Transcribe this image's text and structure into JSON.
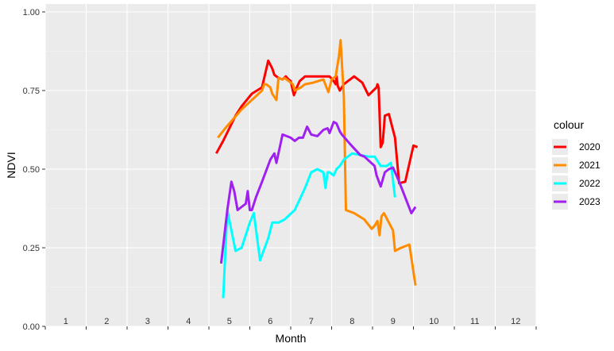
{
  "chart_data": {
    "type": "line",
    "title": "",
    "xlabel": "Month",
    "ylabel": "NDVI",
    "ylim": [
      0,
      1
    ],
    "y_ticks": [
      "0.00",
      "0.25",
      "0.50",
      "0.75",
      "1.00"
    ],
    "y_tick_values": [
      0,
      0.25,
      0.5,
      0.75,
      1.0
    ],
    "month_labels": [
      "1",
      "2",
      "3",
      "4",
      "5",
      "6",
      "7",
      "8",
      "9",
      "10",
      "11",
      "12"
    ],
    "grid": true,
    "legend_title": "colour",
    "legend_position": "right",
    "series": [
      {
        "name": "2020",
        "color": "#ff0000",
        "x": [
          4.68,
          4.85,
          5.0,
          5.15,
          5.3,
          5.55,
          5.8,
          5.95,
          6.05,
          6.1,
          6.2,
          6.3,
          6.38,
          6.45,
          6.5,
          6.55,
          6.58,
          6.65,
          6.72,
          6.85,
          7.05,
          7.25,
          7.45,
          7.55,
          7.6,
          7.62,
          7.65,
          7.7,
          7.8,
          7.9,
          8.05,
          8.25,
          8.4,
          8.6,
          8.62,
          8.65,
          8.7,
          8.75,
          8.8,
          8.9,
          9.05,
          9.15,
          9.3,
          9.5,
          9.6
        ],
        "y": [
          0.55,
          0.59,
          0.63,
          0.67,
          0.7,
          0.74,
          0.76,
          0.845,
          0.82,
          0.8,
          0.79,
          0.785,
          0.795,
          0.785,
          0.78,
          0.75,
          0.735,
          0.76,
          0.78,
          0.795,
          0.795,
          0.795,
          0.795,
          0.78,
          0.77,
          0.795,
          0.765,
          0.75,
          0.77,
          0.78,
          0.795,
          0.775,
          0.735,
          0.76,
          0.77,
          0.76,
          0.57,
          0.585,
          0.67,
          0.675,
          0.6,
          0.455,
          0.46,
          0.575,
          0.57
        ]
      },
      {
        "name": "2021",
        "color": "#ff8c00",
        "x": [
          4.72,
          4.9,
          5.1,
          5.3,
          5.55,
          5.8,
          5.85,
          5.9,
          6.0,
          6.05,
          6.15,
          6.2,
          6.3,
          6.35,
          6.55,
          6.6,
          6.75,
          6.85,
          7.05,
          7.3,
          7.42,
          7.5,
          7.6,
          7.68,
          7.72,
          7.8,
          7.85,
          8.05,
          8.3,
          8.48,
          8.55,
          8.62,
          8.67,
          8.72,
          8.78,
          9.0,
          9.05,
          9.2,
          9.4,
          9.55
        ],
        "y": [
          0.6,
          0.63,
          0.66,
          0.69,
          0.72,
          0.75,
          0.77,
          0.77,
          0.76,
          0.74,
          0.72,
          0.79,
          0.785,
          0.79,
          0.77,
          0.75,
          0.76,
          0.77,
          0.775,
          0.785,
          0.745,
          0.785,
          0.795,
          0.86,
          0.91,
          0.73,
          0.37,
          0.36,
          0.34,
          0.31,
          0.32,
          0.335,
          0.29,
          0.35,
          0.36,
          0.305,
          0.24,
          0.25,
          0.26,
          0.13
        ]
      },
      {
        "name": "2022",
        "color": "#00ffff",
        "x": [
          4.85,
          4.95,
          5.15,
          5.3,
          5.5,
          5.6,
          5.75,
          5.95,
          6.05,
          6.2,
          6.35,
          6.6,
          6.85,
          7.0,
          7.15,
          7.3,
          7.35,
          7.4,
          7.45,
          7.55,
          7.62,
          7.7,
          7.8,
          8.0,
          8.2,
          8.4,
          8.55,
          8.7,
          8.85,
          8.95,
          9.05
        ],
        "y": [
          0.09,
          0.37,
          0.24,
          0.25,
          0.33,
          0.36,
          0.21,
          0.28,
          0.33,
          0.33,
          0.34,
          0.37,
          0.44,
          0.49,
          0.5,
          0.49,
          0.44,
          0.49,
          0.49,
          0.48,
          0.5,
          0.51,
          0.53,
          0.55,
          0.545,
          0.54,
          0.54,
          0.51,
          0.51,
          0.52,
          0.41
        ]
      },
      {
        "name": "2023",
        "color": "#a020f0",
        "x": [
          4.8,
          4.95,
          5.05,
          5.12,
          5.2,
          5.3,
          5.4,
          5.45,
          5.5,
          5.55,
          5.65,
          5.8,
          6.0,
          6.1,
          6.15,
          6.3,
          6.5,
          6.6,
          6.7,
          6.8,
          6.9,
          7.0,
          7.15,
          7.3,
          7.4,
          7.45,
          7.55,
          7.62,
          7.7,
          7.75,
          7.95,
          8.2,
          8.3,
          8.55,
          8.6,
          8.7,
          8.8,
          8.9,
          9.0,
          9.15,
          9.3,
          9.45,
          9.55
        ],
        "y": [
          0.2,
          0.37,
          0.46,
          0.43,
          0.37,
          0.38,
          0.39,
          0.43,
          0.37,
          0.37,
          0.41,
          0.46,
          0.53,
          0.55,
          0.52,
          0.61,
          0.6,
          0.59,
          0.6,
          0.6,
          0.635,
          0.61,
          0.605,
          0.625,
          0.63,
          0.615,
          0.65,
          0.645,
          0.62,
          0.61,
          0.58,
          0.545,
          0.54,
          0.51,
          0.48,
          0.445,
          0.49,
          0.5,
          0.505,
          0.46,
          0.41,
          0.36,
          0.38
        ]
      }
    ]
  }
}
